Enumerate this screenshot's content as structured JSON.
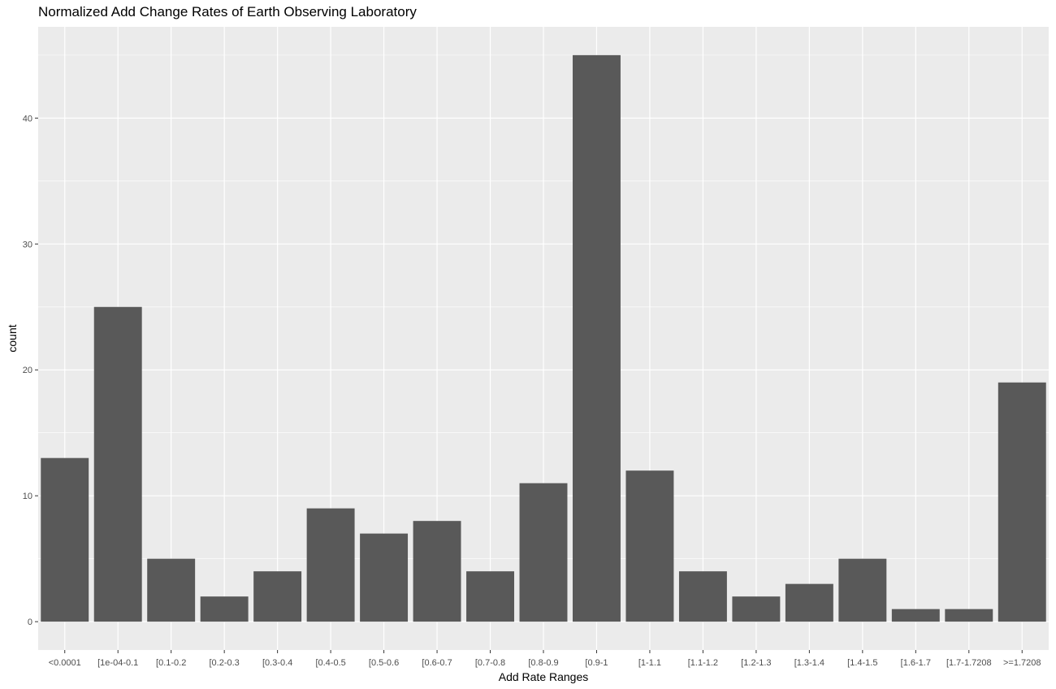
{
  "chart_data": {
    "type": "bar",
    "title": "Normalized Add Change Rates of Earth Observing Laboratory",
    "xlabel": "Add Rate Ranges",
    "ylabel": "count",
    "categories": [
      "<0.0001",
      "[1e-04-0.1",
      "[0.1-0.2",
      "[0.2-0.3",
      "[0.3-0.4",
      "[0.4-0.5",
      "[0.5-0.6",
      "[0.6-0.7",
      "[0.7-0.8",
      "[0.8-0.9",
      "[0.9-1",
      "[1-1.1",
      "[1.1-1.2",
      "[1.2-1.3",
      "[1.3-1.4",
      "[1.4-1.5",
      "[1.6-1.7",
      "[1.7-1.7208",
      ">=1.7208"
    ],
    "values": [
      13,
      25,
      5,
      2,
      4,
      9,
      7,
      8,
      4,
      11,
      45,
      12,
      4,
      2,
      3,
      5,
      1,
      1,
      19
    ],
    "ylim": [
      -2.25,
      47.25
    ],
    "yticks": [
      0,
      10,
      20,
      30,
      40
    ],
    "grid": true,
    "colors": {
      "panel": "#ebebeb",
      "grid": "#ffffff",
      "bar": "#595959",
      "tick_text": "#4d4d4d",
      "tick_mark": "#333333"
    }
  }
}
